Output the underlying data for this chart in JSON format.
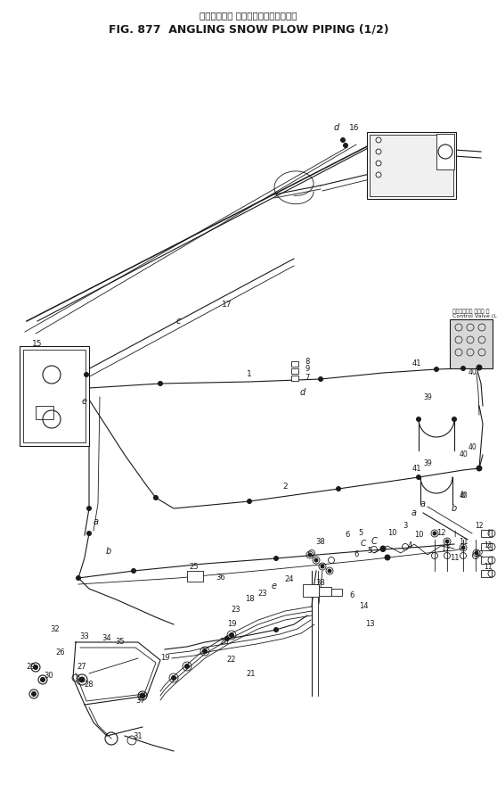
{
  "title_jp": "アングリング スノープラウパイピング",
  "title_en": "FIG. 877  ANGLING SNOW PLOW PIPING (1/2)",
  "bg_color": "#ffffff",
  "line_color": "#1a1a1a",
  "fig_width": 5.58,
  "fig_height": 8.98,
  "dpi": 100,
  "cv_label_jp": "コントロール バルブ 左",
  "cv_label_en": "Control Valve (L.H)"
}
